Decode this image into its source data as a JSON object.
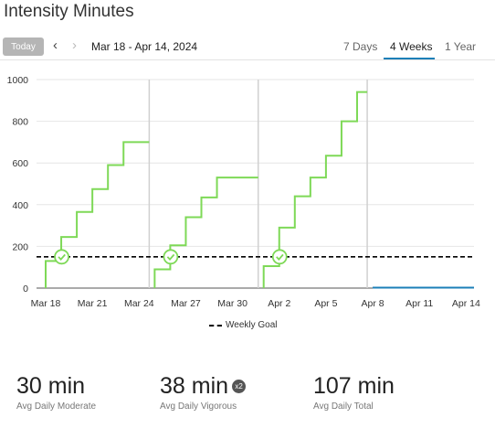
{
  "header": {
    "title": "Intensity Minutes",
    "today_label": "Today",
    "prev_icon": "chevron-left-icon",
    "next_icon": "chevron-right-icon",
    "date_range": "Mar 18 - Apr 14, 2024",
    "tabs": [
      {
        "label": "7 Days",
        "active": false
      },
      {
        "label": "4 Weeks",
        "active": true
      },
      {
        "label": "1 Year",
        "active": false
      }
    ]
  },
  "colors": {
    "accent": "#1b7fb8",
    "series": "#7ed957",
    "goal": "#000000",
    "today_button": "#b5b5b5"
  },
  "chart_data": {
    "type": "line",
    "title": "",
    "xlabel": "",
    "ylabel": "",
    "ylim": [
      0,
      1000
    ],
    "y_ticks": [
      "0",
      "200",
      "400",
      "600",
      "800",
      "1000"
    ],
    "x_ticks": [
      "Mar 18",
      "Mar 21",
      "Mar 24",
      "Mar 27",
      "Mar 30",
      "Apr 2",
      "Apr 5",
      "Apr 8",
      "Apr 11",
      "Apr 14"
    ],
    "grid": true,
    "goal": {
      "label": "Weekly Goal",
      "value": 150
    },
    "series": [
      {
        "week": "Mar 18 - Mar 24",
        "values": [
          130,
          245,
          365,
          475,
          590,
          700,
          700
        ]
      },
      {
        "week": "Mar 25 - Mar 31",
        "values": [
          90,
          205,
          340,
          435,
          530,
          530,
          530
        ]
      },
      {
        "week": "Apr 1 - Apr 7",
        "values": [
          105,
          290,
          440,
          530,
          635,
          800,
          940
        ]
      },
      {
        "week": "Apr 8 - Apr 14",
        "values": [
          0,
          0,
          0,
          0,
          0,
          0,
          0
        ]
      }
    ],
    "legend": {
      "position": "bottom",
      "entries": [
        "Weekly Goal"
      ]
    }
  },
  "stats": [
    {
      "value": "30 min",
      "label": "Avg Daily Moderate"
    },
    {
      "value": "38 min",
      "badge": "x2",
      "label": "Avg Daily Vigorous"
    },
    {
      "value": "107 min",
      "label": "Avg Daily Total"
    }
  ]
}
